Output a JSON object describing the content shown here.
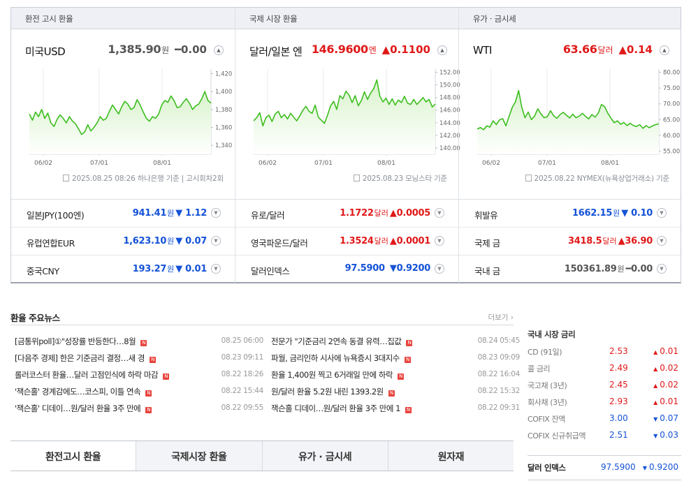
{
  "colors": {
    "up": "#e01919",
    "down": "#1452d6",
    "flat": "#555555",
    "chart_line": "#3cbd1e",
    "chart_fill": "#d8f3cc"
  },
  "panels": [
    {
      "header": "환전 고시 환율",
      "main": {
        "name": "미국USD",
        "value": "1,385.90",
        "unit": "원",
        "direction": "flat",
        "arrow": "━",
        "change": "0.00"
      },
      "source": "2025.08.25 08:26 하나은행 기준 | 고시회차2회",
      "rows": [
        {
          "name": "일본JPY(100엔)",
          "value": "941.41",
          "unit": "원",
          "arrow": "▼",
          "change": "1.12",
          "direction": "down"
        },
        {
          "name": "유럽연합EUR",
          "value": "1,623.10",
          "unit": "원",
          "arrow": "▼",
          "change": "0.07",
          "direction": "down"
        },
        {
          "name": "중국CNY",
          "value": "193.27",
          "unit": "원",
          "arrow": "▼",
          "change": "0.01",
          "direction": "down"
        }
      ]
    },
    {
      "header": "국제 시장 환율",
      "main": {
        "name": "달러/일본 엔",
        "value": "146.9600",
        "unit": "엔",
        "direction": "up",
        "arrow": "▲",
        "change": "0.1100"
      },
      "source": "2025.08.23 모닝스타 기준",
      "rows": [
        {
          "name": "유로/달러",
          "value": "1.1722",
          "unit": "달러",
          "arrow": "▲",
          "change": "0.0005",
          "direction": "up"
        },
        {
          "name": "영국파운드/달러",
          "value": "1.3524",
          "unit": "달러",
          "arrow": "▲",
          "change": "0.0001",
          "direction": "up"
        },
        {
          "name": "달러인덱스",
          "value": "97.5900",
          "unit": "",
          "arrow": "▼",
          "change": "0.9200",
          "direction": "down"
        }
      ]
    },
    {
      "header": "유가 · 금시세",
      "main": {
        "name": "WTI",
        "value": "63.66",
        "unit": "달러",
        "direction": "up",
        "arrow": "▲",
        "change": "0.14"
      },
      "source": "2025.08.22 NYMEX(뉴욕상업거래소) 기준",
      "rows": [
        {
          "name": "휘발유",
          "value": "1662.15",
          "unit": "원",
          "arrow": "▼",
          "change": "0.10",
          "direction": "down"
        },
        {
          "name": "국제 금",
          "value": "3418.5",
          "unit": "달러",
          "arrow": "▲",
          "change": "36.90",
          "direction": "up"
        },
        {
          "name": "국내 금",
          "value": "150361.89",
          "unit": "원",
          "arrow": "━",
          "change": "0.00",
          "direction": "flat"
        }
      ]
    }
  ],
  "chart_data": [
    {
      "type": "area",
      "x_ticks": [
        "06/02",
        "07/01",
        "08/01"
      ],
      "ylim": [
        1330,
        1425
      ],
      "y_ticks": [
        "1,420",
        "1,400",
        "1,380",
        "1,360",
        "1,340"
      ],
      "tick_values": [
        1420,
        1400,
        1380,
        1360,
        1340
      ],
      "values": [
        1375,
        1368,
        1377,
        1372,
        1380,
        1370,
        1376,
        1365,
        1361,
        1369,
        1374,
        1370,
        1365,
        1372,
        1367,
        1364,
        1358,
        1352,
        1355,
        1363,
        1356,
        1360,
        1365,
        1372,
        1368,
        1370,
        1378,
        1385,
        1380,
        1375,
        1383,
        1389,
        1386,
        1380,
        1382,
        1391,
        1385,
        1377,
        1370,
        1367,
        1372,
        1370,
        1375,
        1385,
        1390,
        1388,
        1395,
        1390,
        1382,
        1383,
        1388,
        1392,
        1387,
        1380,
        1384,
        1386,
        1392,
        1400,
        1390,
        1387
      ]
    },
    {
      "type": "area",
      "x_ticks": [
        "06/02",
        "07/01",
        "08/01"
      ],
      "ylim": [
        139,
        152.5
      ],
      "y_ticks": [
        "152.00",
        "150.00",
        "148.00",
        "146.00",
        "144.00",
        "142.00",
        "140.00"
      ],
      "tick_values": [
        152,
        150,
        148,
        146,
        144,
        142,
        140
      ],
      "values": [
        144.3,
        144.8,
        145.6,
        143.5,
        144.8,
        145.2,
        144.2,
        145.4,
        145.8,
        144.8,
        145.3,
        144.6,
        145.5,
        144.9,
        144.3,
        145.1,
        146.0,
        146.6,
        145.8,
        145.5,
        146.8,
        144.9,
        144.4,
        143.9,
        145.2,
        146.7,
        147.4,
        146.1,
        148.3,
        147.8,
        149.0,
        148.4,
        147.2,
        148.3,
        146.7,
        147.5,
        148.9,
        147.7,
        148.7,
        149.4,
        150.8,
        148.2,
        147.3,
        147.9,
        146.9,
        147.8,
        146.8,
        147.6,
        147.2,
        148.2,
        147.1,
        146.9,
        147.7,
        146.9,
        147.4,
        148.0,
        147.3,
        147.7,
        146.5,
        146.96
      ]
    },
    {
      "type": "area",
      "x_ticks": [
        "06/02",
        "07/01",
        "08/01"
      ],
      "ylim": [
        54,
        81
      ],
      "y_ticks": [
        "80.00",
        "75.00",
        "70.00",
        "65.00",
        "60.00",
        "55.00"
      ],
      "tick_values": [
        80,
        75,
        70,
        65,
        60,
        55
      ],
      "values": [
        62.0,
        62.5,
        61.8,
        63.0,
        62.6,
        64.6,
        63.4,
        64.9,
        65.3,
        63.0,
        66.0,
        68.9,
        70.6,
        74.2,
        68.8,
        65.6,
        67.4,
        65.0,
        66.1,
        68.4,
        66.8,
        65.6,
        65.9,
        67.8,
        66.2,
        65.4,
        66.6,
        67.3,
        66.4,
        65.5,
        66.7,
        65.6,
        66.1,
        67.0,
        66.0,
        65.2,
        66.6,
        65.8,
        67.1,
        69.8,
        69.1,
        67.0,
        65.4,
        64.0,
        64.6,
        63.5,
        64.1,
        63.1,
        63.8,
        63.1,
        62.8,
        63.4,
        62.2,
        63.1,
        62.4,
        63.0,
        63.4,
        63.66
      ]
    }
  ],
  "news": {
    "title": "환율 주요뉴스",
    "more": "더보기",
    "more_arrow": "›",
    "new_badge": "N",
    "left": [
      {
        "title": "[금통위poll]①\"성장률 반등한다…8월",
        "time": "08.25 06:00"
      },
      {
        "title": "[다음주 경제] 한은 기준금리 결정…새 경",
        "time": "08.23 09:11"
      },
      {
        "title": "롤러코스터 환율…달러 고점인식에 하락 마감",
        "time": "08.22 18:26"
      },
      {
        "title": "'잭슨홀' 경계감에도…코스피, 이틀 연속",
        "time": "08.22 15:44"
      },
      {
        "title": "'잭슨홀' 디데이…원/달러 환율 3주 만에",
        "time": "08.22 09:55"
      }
    ],
    "right": [
      {
        "title": "전문가 \"기준금리 2연속 동결 유력…집값",
        "time": "08.24 05:45"
      },
      {
        "title": "파월, 금리인하 시사에 뉴욕증시 3대지수",
        "time": "08.23 09:09"
      },
      {
        "title": "환율 1,400원 찍고 6거래일 만에 하락",
        "time": "08.22 16:04"
      },
      {
        "title": "원/달러 환율 5.2원 내린 1393.2원",
        "time": "08.22 15:32"
      },
      {
        "title": "잭슨홀 디데이…원/달러 환율 3주 만에 1",
        "time": "08.22 09:31"
      }
    ]
  },
  "tabs": [
    {
      "label": "환전고시 환율",
      "active": true
    },
    {
      "label": "국제시장 환율",
      "active": false
    },
    {
      "label": "유가 · 금시세",
      "active": false
    },
    {
      "label": "원자재",
      "active": false
    }
  ],
  "rates": {
    "title": "국내 시장 금리",
    "items": [
      {
        "name": "CD (91일)",
        "value": "2.53",
        "arrow": "▲",
        "change": "0.01",
        "direction": "up"
      },
      {
        "name": "콜 금리",
        "value": "2.49",
        "arrow": "▲",
        "change": "0.02",
        "direction": "up"
      },
      {
        "name": "국고채 (3년)",
        "value": "2.45",
        "arrow": "▲",
        "change": "0.02",
        "direction": "up"
      },
      {
        "name": "회사채 (3년)",
        "value": "2.93",
        "arrow": "▲",
        "change": "0.01",
        "direction": "up"
      },
      {
        "name": "COFIX 잔액",
        "value": "3.00",
        "arrow": "▼",
        "change": "0.07",
        "direction": "down"
      },
      {
        "name": "COFIX 신규취급액",
        "value": "2.51",
        "arrow": "▼",
        "change": "0.03",
        "direction": "down"
      }
    ],
    "dollar_index": {
      "name": "달러 인덱스",
      "value": "97.5900",
      "arrow": "▼",
      "change": "0.9200",
      "direction": "down"
    }
  }
}
